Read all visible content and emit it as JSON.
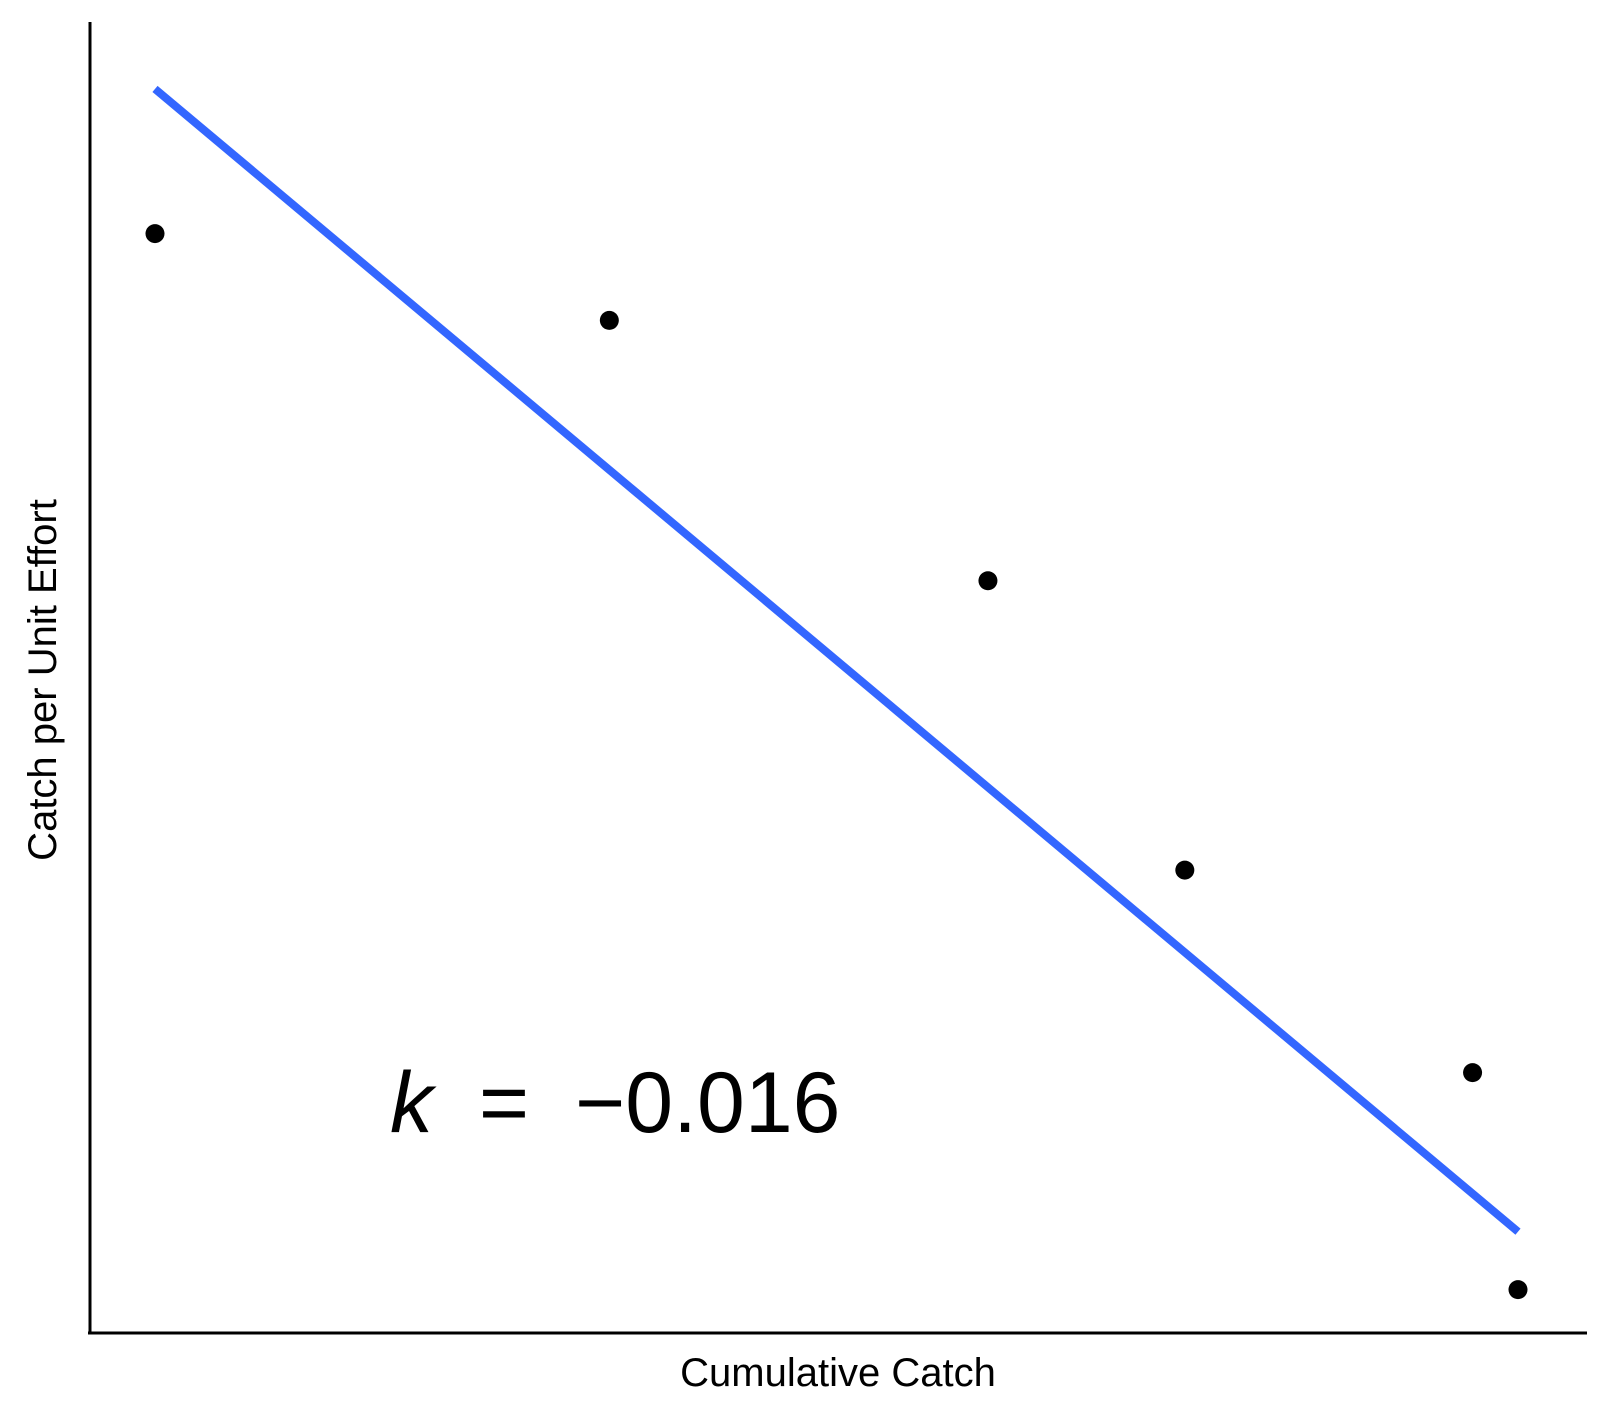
{
  "chart_data": {
    "type": "scatter",
    "title": "",
    "xlabel": "Cumulative Catch",
    "ylabel": "Catch per Unit Effort",
    "grid": false,
    "x_ticks_shown": false,
    "y_ticks_shown": false,
    "series": [
      {
        "name": "",
        "kind": "points",
        "color": "#000000",
        "points": [
          {
            "x": 0.0,
            "y": 0.0
          },
          {
            "x": 0.3,
            "y": 0.0
          },
          {
            "x": 0.55,
            "y": 0.0
          },
          {
            "x": 0.68,
            "y": 0.0
          },
          {
            "x": 0.87,
            "y": 0.0
          },
          {
            "x": 0.9,
            "y": 0.0
          }
        ]
      },
      {
        "name": "",
        "kind": "fit-line",
        "color": "#3366FF",
        "points": [
          {
            "x": 0.0,
            "y": 0.0
          },
          {
            "x": 0.9,
            "y": 0.0
          }
        ]
      }
    ],
    "annotation": {
      "symbol": "k",
      "equals": "=",
      "value": "−0.016"
    }
  }
}
